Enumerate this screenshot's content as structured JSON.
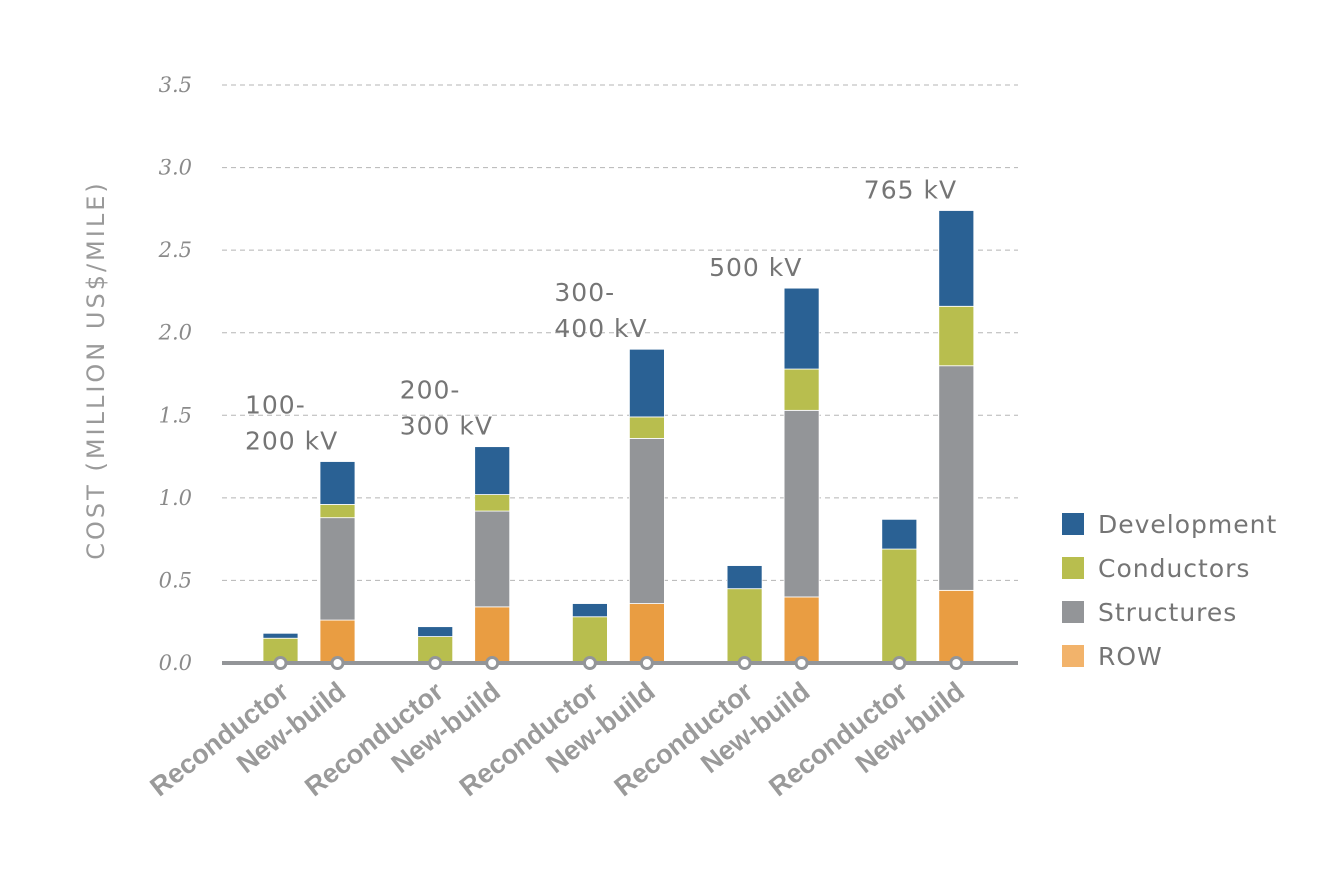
{
  "chart_data": {
    "type": "bar",
    "stacked": true,
    "title": "",
    "ylabel": "COST (MILLION US$/MILE)",
    "xlabel": "",
    "ylim": [
      0,
      3.5
    ],
    "yticks": [
      "0.0",
      "0.5",
      "1.0",
      "1.5",
      "2.0",
      "2.5",
      "3.0",
      "3.5"
    ],
    "grid": true,
    "legend_position": "right",
    "groups": [
      {
        "label_lines": [
          "100-",
          "200 kV"
        ],
        "categories": [
          "Reconductor",
          "New-build"
        ]
      },
      {
        "label_lines": [
          "200-",
          "300 kV"
        ],
        "categories": [
          "Reconductor",
          "New-build"
        ]
      },
      {
        "label_lines": [
          "300-",
          "400 kV"
        ],
        "categories": [
          "Reconductor",
          "New-build"
        ]
      },
      {
        "label_lines": [
          "500 kV"
        ],
        "categories": [
          "Reconductor",
          "New-build"
        ]
      },
      {
        "label_lines": [
          "765 kV"
        ],
        "categories": [
          "Reconductor",
          "New-build"
        ]
      }
    ],
    "series": [
      {
        "name": "ROW",
        "color": "#e99d42",
        "legend_color": "#f2b36b",
        "values": [
          [
            0,
            0.26
          ],
          [
            0,
            0.34
          ],
          [
            0,
            0.36
          ],
          [
            0,
            0.4
          ],
          [
            0,
            0.44
          ]
        ]
      },
      {
        "name": "Structures",
        "color": "#939598",
        "values": [
          [
            0,
            0.62
          ],
          [
            0,
            0.58
          ],
          [
            0,
            1.0
          ],
          [
            0,
            1.13
          ],
          [
            0,
            1.36
          ]
        ]
      },
      {
        "name": "Conductors",
        "color": "#b8be4e",
        "values": [
          [
            0.15,
            0.08
          ],
          [
            0.16,
            0.1
          ],
          [
            0.28,
            0.13
          ],
          [
            0.45,
            0.25
          ],
          [
            0.69,
            0.36
          ]
        ]
      },
      {
        "name": "Development",
        "color": "#2a6194",
        "values": [
          [
            0.03,
            0.26
          ],
          [
            0.06,
            0.29
          ],
          [
            0.08,
            0.41
          ],
          [
            0.14,
            0.49
          ],
          [
            0.18,
            0.58
          ]
        ]
      }
    ],
    "legend_order": [
      "Development",
      "Conductors",
      "Structures",
      "ROW"
    ]
  }
}
